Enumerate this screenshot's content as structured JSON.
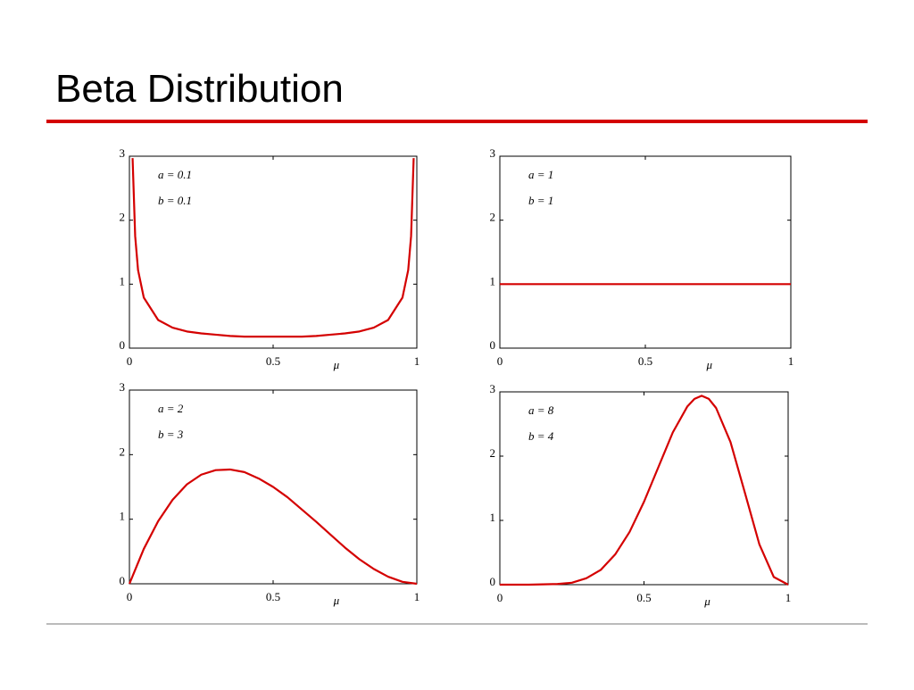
{
  "title": "Beta Distribution",
  "chart_data": [
    {
      "type": "line",
      "xlabel": "μ",
      "annotations": [
        "a = 0.1",
        "b = 0.1"
      ],
      "x": [
        0.011,
        0.02,
        0.03,
        0.05,
        0.1,
        0.15,
        0.2,
        0.25,
        0.3,
        0.35,
        0.4,
        0.45,
        0.5,
        0.55,
        0.6,
        0.65,
        0.7,
        0.75,
        0.8,
        0.85,
        0.9,
        0.95,
        0.97,
        0.98,
        0.989
      ],
      "values": [
        2.97,
        1.75,
        1.22,
        0.79,
        0.44,
        0.32,
        0.26,
        0.23,
        0.21,
        0.19,
        0.18,
        0.18,
        0.18,
        0.18,
        0.18,
        0.19,
        0.21,
        0.23,
        0.26,
        0.32,
        0.44,
        0.79,
        1.22,
        1.75,
        2.97
      ],
      "color": "#d40000",
      "xlim": [
        0,
        1
      ],
      "ylim": [
        0,
        3
      ],
      "xticks": [
        0,
        0.5,
        1
      ],
      "yticks": [
        0,
        1,
        2,
        3
      ]
    },
    {
      "type": "line",
      "xlabel": "μ",
      "annotations": [
        "a = 1",
        "b = 1"
      ],
      "x": [
        0,
        1
      ],
      "values": [
        1,
        1
      ],
      "color": "#d40000",
      "xlim": [
        0,
        1
      ],
      "ylim": [
        0,
        3
      ],
      "xticks": [
        0,
        0.5,
        1
      ],
      "yticks": [
        0,
        1,
        2,
        3
      ]
    },
    {
      "type": "line",
      "xlabel": "μ",
      "annotations": [
        "a = 2",
        "b = 3"
      ],
      "x": [
        0,
        0.05,
        0.1,
        0.15,
        0.2,
        0.25,
        0.3,
        0.35,
        0.4,
        0.45,
        0.5,
        0.55,
        0.6,
        0.65,
        0.7,
        0.75,
        0.8,
        0.85,
        0.9,
        0.95,
        1
      ],
      "values": [
        0,
        0.54,
        0.97,
        1.3,
        1.54,
        1.69,
        1.76,
        1.77,
        1.73,
        1.63,
        1.5,
        1.34,
        1.15,
        0.96,
        0.76,
        0.56,
        0.38,
        0.23,
        0.11,
        0.03,
        0
      ],
      "color": "#d40000",
      "xlim": [
        0,
        1
      ],
      "ylim": [
        0,
        3
      ],
      "xticks": [
        0,
        0.5,
        1
      ],
      "yticks": [
        0,
        1,
        2,
        3
      ]
    },
    {
      "type": "line",
      "xlabel": "μ",
      "annotations": [
        "a = 8",
        "b = 4"
      ],
      "x": [
        0,
        0.1,
        0.2,
        0.25,
        0.3,
        0.35,
        0.4,
        0.45,
        0.5,
        0.55,
        0.6,
        0.65,
        0.675,
        0.7,
        0.725,
        0.75,
        0.8,
        0.85,
        0.9,
        0.95,
        1
      ],
      "values": [
        0,
        0,
        0.01,
        0.03,
        0.1,
        0.23,
        0.47,
        0.82,
        1.29,
        1.83,
        2.37,
        2.77,
        2.89,
        2.94,
        2.89,
        2.75,
        2.22,
        1.43,
        0.63,
        0.12,
        0
      ],
      "color": "#d40000",
      "xlim": [
        0,
        1
      ],
      "ylim": [
        0,
        3
      ],
      "xticks": [
        0,
        0.5,
        1
      ],
      "yticks": [
        0,
        1,
        2,
        3
      ]
    }
  ]
}
